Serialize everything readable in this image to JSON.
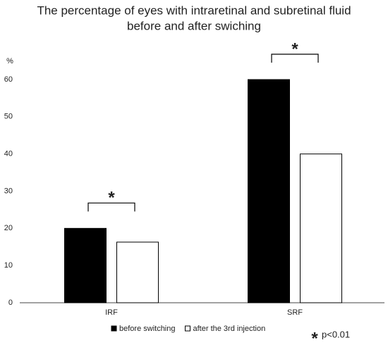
{
  "chart_data": {
    "type": "bar",
    "title": [
      "The percentage of eyes with intraretinal and subretinal fluid",
      "before and after swiching"
    ],
    "y_label": "%",
    "categories": [
      "IRF",
      "SRF"
    ],
    "series": [
      {
        "name": "before switching",
        "color": "#000000",
        "values": [
          20,
          60
        ]
      },
      {
        "name": "after the 3rd injection",
        "color": "#ffffff",
        "values": [
          16.3,
          40
        ]
      }
    ],
    "ylim": [
      0,
      65
    ],
    "yticks": [
      0,
      10,
      20,
      30,
      40,
      50,
      60
    ],
    "grid": false,
    "significant": [
      true,
      true
    ],
    "significance_marker": "*",
    "significance_note": "p<0.01"
  }
}
